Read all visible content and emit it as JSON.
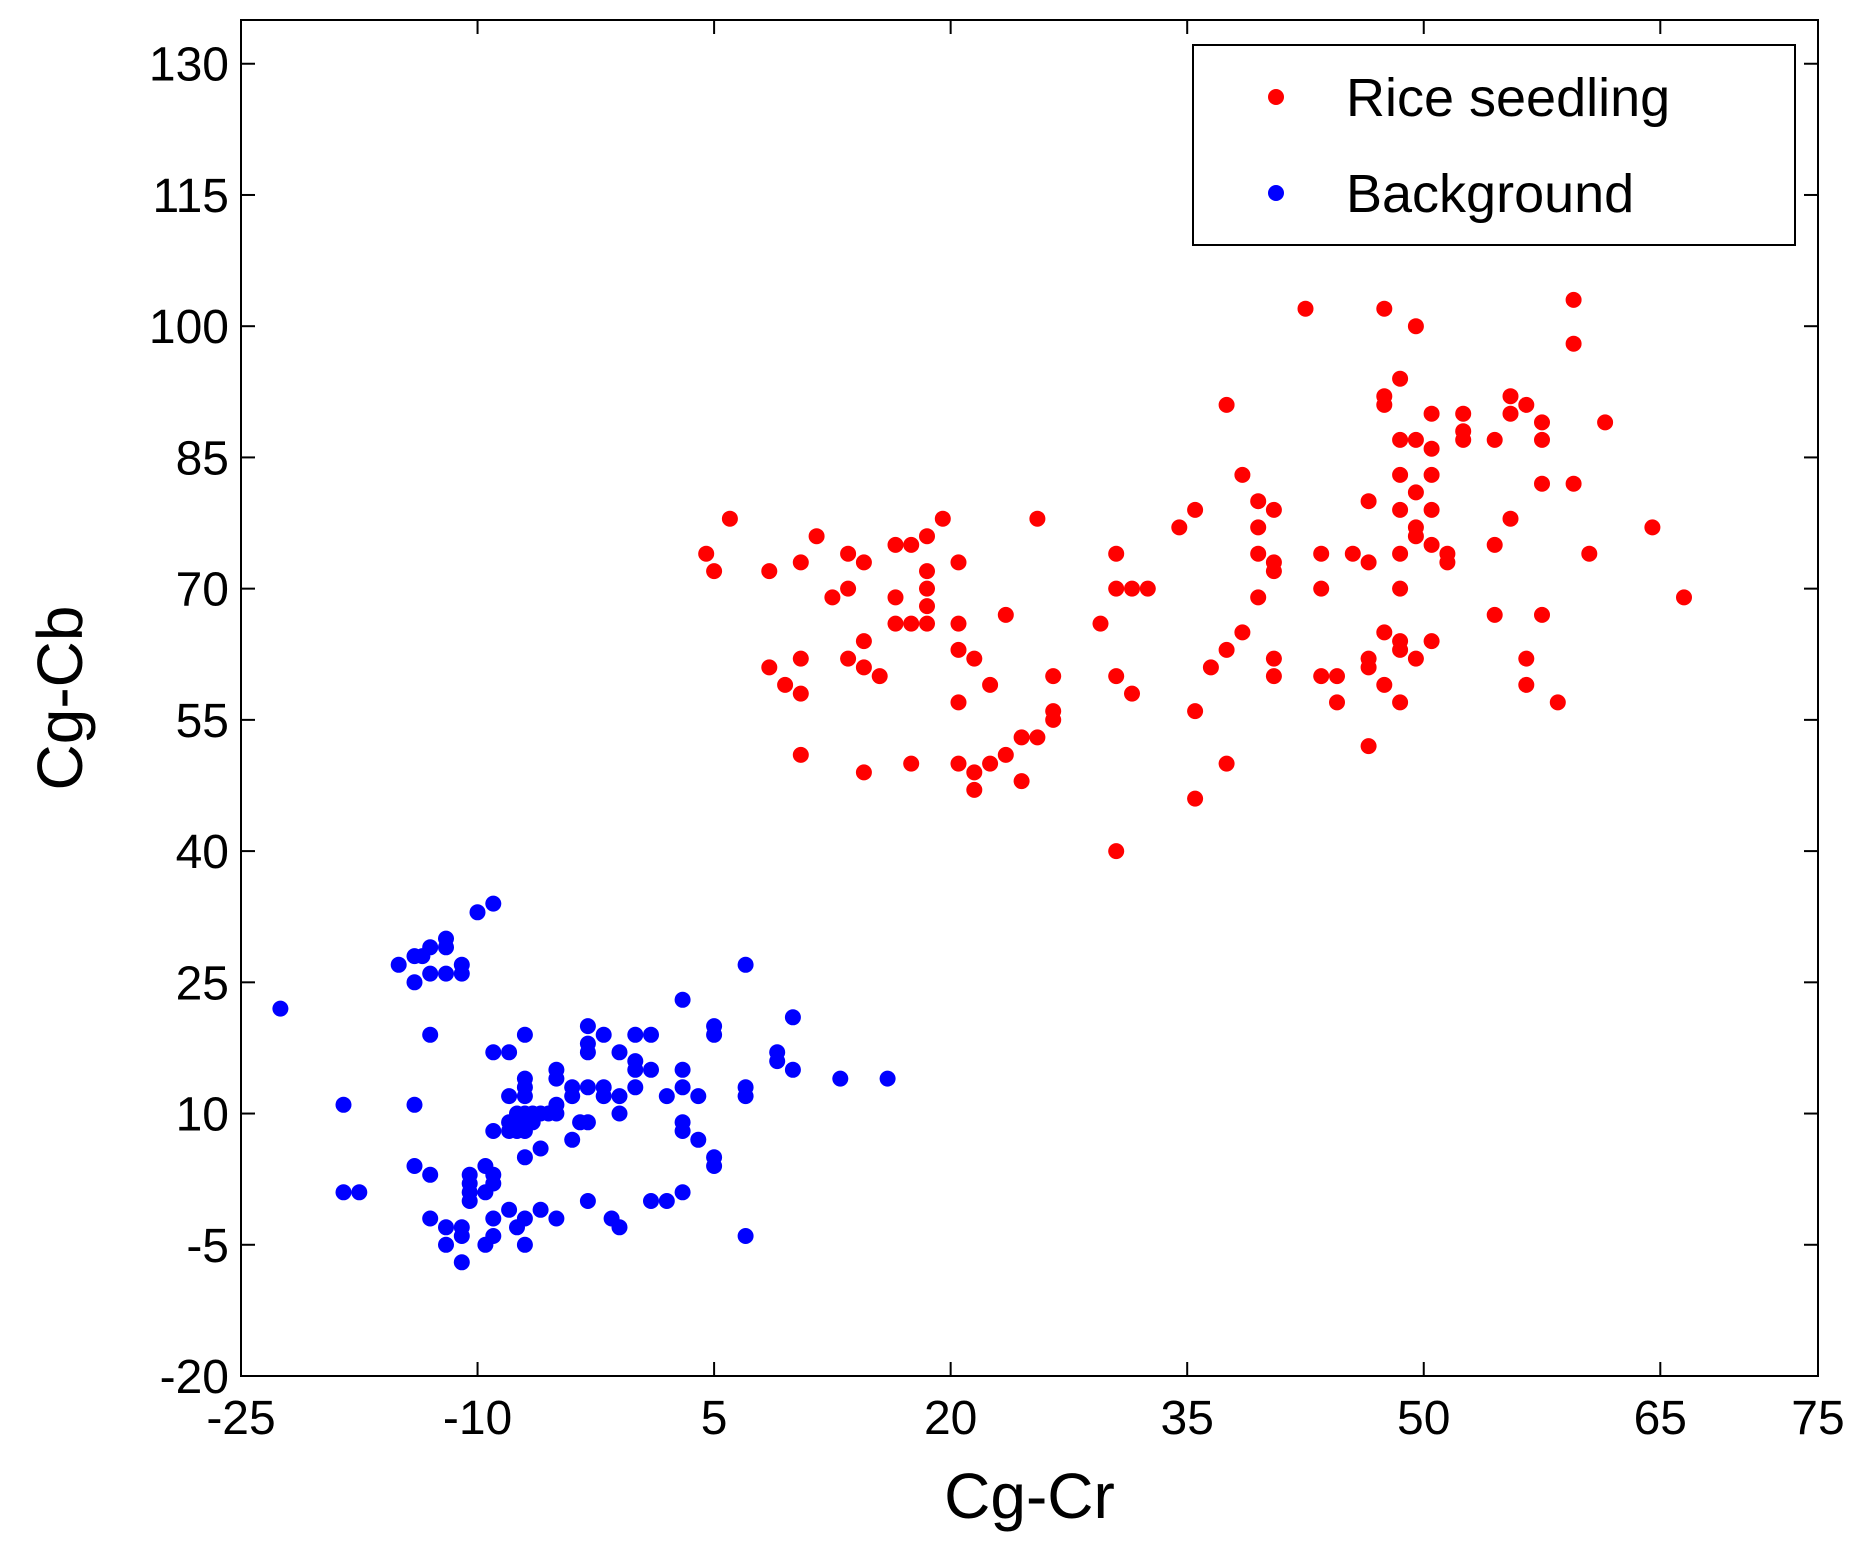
{
  "chart_data": {
    "type": "scatter",
    "title": "",
    "xlabel": "Cg-Cr",
    "ylabel": "Cg-Cb",
    "xlim": [
      -25,
      75
    ],
    "ylim": [
      -20,
      135
    ],
    "xticks": [
      -25,
      -10,
      5,
      20,
      35,
      50,
      65,
      75
    ],
    "yticks": [
      -20,
      -5,
      10,
      25,
      40,
      55,
      70,
      85,
      100,
      115,
      130
    ],
    "xtick_labels": [
      "-25",
      "-10",
      "5",
      "20",
      "35",
      "50",
      "65",
      "75"
    ],
    "ytick_labels": [
      "-20",
      "-5",
      "10",
      "25",
      "40",
      "55",
      "70",
      "85",
      "100",
      "115",
      "130"
    ],
    "grid": false,
    "legend_position": "top-right",
    "series": [
      {
        "name": "Rice seedling",
        "color": "#ff0000",
        "points": [
          [
            4.5,
            74
          ],
          [
            5,
            72
          ],
          [
            6,
            78
          ],
          [
            8.5,
            72
          ],
          [
            8.5,
            61
          ],
          [
            9.5,
            59
          ],
          [
            10.5,
            62
          ],
          [
            10.5,
            58
          ],
          [
            10.5,
            51
          ],
          [
            10.5,
            73
          ],
          [
            11.5,
            76
          ],
          [
            12.5,
            69
          ],
          [
            13.5,
            74
          ],
          [
            13.5,
            70
          ],
          [
            14.5,
            73
          ],
          [
            14.5,
            64
          ],
          [
            14.5,
            61
          ],
          [
            13.5,
            62
          ],
          [
            15.5,
            60
          ],
          [
            14.5,
            49
          ],
          [
            16.5,
            75
          ],
          [
            17.5,
            75
          ],
          [
            16.5,
            69
          ],
          [
            16.5,
            66
          ],
          [
            17.5,
            66
          ],
          [
            18.5,
            76
          ],
          [
            18.5,
            72
          ],
          [
            18.5,
            70
          ],
          [
            18.5,
            68
          ],
          [
            18.5,
            66
          ],
          [
            19.5,
            78
          ],
          [
            17.5,
            50
          ],
          [
            20.5,
            73
          ],
          [
            20.5,
            66
          ],
          [
            20.5,
            63
          ],
          [
            21.5,
            62
          ],
          [
            20.5,
            57
          ],
          [
            20.5,
            50
          ],
          [
            21.5,
            49
          ],
          [
            21.5,
            47
          ],
          [
            22.5,
            59
          ],
          [
            22.5,
            50
          ],
          [
            23.5,
            67
          ],
          [
            23.5,
            51
          ],
          [
            24.5,
            53
          ],
          [
            24.5,
            48
          ],
          [
            25.5,
            53
          ],
          [
            25.5,
            78
          ],
          [
            26.5,
            60
          ],
          [
            26.5,
            56
          ],
          [
            26.5,
            55
          ],
          [
            29.5,
            66
          ],
          [
            30.5,
            74
          ],
          [
            30.5,
            70
          ],
          [
            30.5,
            60
          ],
          [
            30.5,
            40
          ],
          [
            31.5,
            70
          ],
          [
            31.5,
            58
          ],
          [
            32.5,
            70
          ],
          [
            34.5,
            77
          ],
          [
            35.5,
            79
          ],
          [
            35.5,
            56
          ],
          [
            35.5,
            46
          ],
          [
            36.5,
            61
          ],
          [
            37.5,
            91
          ],
          [
            37.5,
            63
          ],
          [
            37.5,
            50
          ],
          [
            38.5,
            83
          ],
          [
            38.5,
            65
          ],
          [
            39.5,
            80
          ],
          [
            39.5,
            77
          ],
          [
            39.5,
            74
          ],
          [
            39.5,
            69
          ],
          [
            40.5,
            79
          ],
          [
            40.5,
            73
          ],
          [
            40.5,
            72
          ],
          [
            40.5,
            62
          ],
          [
            40.5,
            60
          ],
          [
            42.5,
            102
          ],
          [
            43.5,
            74
          ],
          [
            43.5,
            70
          ],
          [
            43.5,
            60
          ],
          [
            44.5,
            60
          ],
          [
            44.5,
            57
          ],
          [
            45.5,
            74
          ],
          [
            46.5,
            80
          ],
          [
            46.5,
            73
          ],
          [
            46.5,
            62
          ],
          [
            46.5,
            61
          ],
          [
            46.5,
            52
          ],
          [
            47.5,
            102
          ],
          [
            47.5,
            92
          ],
          [
            47.5,
            91
          ],
          [
            47.5,
            65
          ],
          [
            47.5,
            59
          ],
          [
            48.5,
            94
          ],
          [
            48.5,
            87
          ],
          [
            48.5,
            83
          ],
          [
            48.5,
            79
          ],
          [
            48.5,
            74
          ],
          [
            48.5,
            70
          ],
          [
            48.5,
            64
          ],
          [
            48.5,
            63
          ],
          [
            48.5,
            57
          ],
          [
            49.5,
            100
          ],
          [
            49.5,
            87
          ],
          [
            49.5,
            81
          ],
          [
            49.5,
            77
          ],
          [
            49.5,
            76
          ],
          [
            49.5,
            62
          ],
          [
            50.5,
            90
          ],
          [
            50.5,
            86
          ],
          [
            50.5,
            83
          ],
          [
            50.5,
            79
          ],
          [
            50.5,
            75
          ],
          [
            50.5,
            64
          ],
          [
            51.5,
            74
          ],
          [
            51.5,
            73
          ],
          [
            52.5,
            90
          ],
          [
            52.5,
            88
          ],
          [
            52.5,
            87
          ],
          [
            54.5,
            87
          ],
          [
            54.5,
            75
          ],
          [
            54.5,
            67
          ],
          [
            55.5,
            92
          ],
          [
            55.5,
            90
          ],
          [
            55.5,
            78
          ],
          [
            56.5,
            91
          ],
          [
            56.5,
            62
          ],
          [
            56.5,
            59
          ],
          [
            57.5,
            89
          ],
          [
            57.5,
            87
          ],
          [
            57.5,
            82
          ],
          [
            57.5,
            67
          ],
          [
            58.5,
            57
          ],
          [
            59.5,
            103
          ],
          [
            59.5,
            98
          ],
          [
            59.5,
            82
          ],
          [
            60.5,
            74
          ],
          [
            61.5,
            89
          ],
          [
            64.5,
            77
          ],
          [
            66.5,
            69
          ]
        ]
      },
      {
        "name": "Background",
        "color": "#0000ff",
        "points": [
          [
            -22.5,
            22
          ],
          [
            -18.5,
            11
          ],
          [
            -18.5,
            1
          ],
          [
            -17.5,
            1
          ],
          [
            -15,
            27
          ],
          [
            -14,
            28
          ],
          [
            -14,
            25
          ],
          [
            -14,
            11
          ],
          [
            -14,
            4
          ],
          [
            -13.5,
            28
          ],
          [
            -13,
            29
          ],
          [
            -13,
            26
          ],
          [
            -13,
            19
          ],
          [
            -13,
            3
          ],
          [
            -13,
            -2
          ],
          [
            -12,
            30
          ],
          [
            -12,
            29
          ],
          [
            -12,
            26
          ],
          [
            -12,
            -3
          ],
          [
            -12,
            -5
          ],
          [
            -11,
            27
          ],
          [
            -11,
            26
          ],
          [
            -11,
            -3
          ],
          [
            -11,
            -4
          ],
          [
            -11,
            -7
          ],
          [
            -10.5,
            3
          ],
          [
            -10.5,
            2
          ],
          [
            -10.5,
            1
          ],
          [
            -10.5,
            0
          ],
          [
            -10,
            33
          ],
          [
            -9.5,
            4
          ],
          [
            -9.5,
            1
          ],
          [
            -9.5,
            -5
          ],
          [
            -9,
            34
          ],
          [
            -9,
            17
          ],
          [
            -9,
            8
          ],
          [
            -9,
            3
          ],
          [
            -9,
            2
          ],
          [
            -9,
            -2
          ],
          [
            -9,
            -4
          ],
          [
            -8,
            17
          ],
          [
            -8,
            12
          ],
          [
            -8,
            9
          ],
          [
            -8,
            8
          ],
          [
            -8,
            -1
          ],
          [
            -7.5,
            10
          ],
          [
            -7.5,
            9
          ],
          [
            -7.5,
            8
          ],
          [
            -7.5,
            -3
          ],
          [
            -7,
            19
          ],
          [
            -7,
            14
          ],
          [
            -7,
            13
          ],
          [
            -7,
            12
          ],
          [
            -7,
            10
          ],
          [
            -7,
            9
          ],
          [
            -7,
            8
          ],
          [
            -7,
            5
          ],
          [
            -7,
            -2
          ],
          [
            -7,
            -5
          ],
          [
            -6.5,
            10
          ],
          [
            -6.5,
            9
          ],
          [
            -6,
            10
          ],
          [
            -6,
            6
          ],
          [
            -6,
            -1
          ],
          [
            -5.5,
            10
          ],
          [
            -5,
            15
          ],
          [
            -5,
            14
          ],
          [
            -5,
            11
          ],
          [
            -5,
            10
          ],
          [
            -5,
            -2
          ],
          [
            -4,
            13
          ],
          [
            -4,
            12
          ],
          [
            -4,
            7
          ],
          [
            -3.5,
            9
          ],
          [
            -3,
            20
          ],
          [
            -3,
            18
          ],
          [
            -3,
            17
          ],
          [
            -3,
            13
          ],
          [
            -3,
            9
          ],
          [
            -3,
            0
          ],
          [
            -2,
            19
          ],
          [
            -2,
            13
          ],
          [
            -2,
            12
          ],
          [
            -1.5,
            -2
          ],
          [
            -1,
            17
          ],
          [
            -1,
            12
          ],
          [
            -1,
            10
          ],
          [
            -1,
            -3
          ],
          [
            0,
            19
          ],
          [
            0,
            16
          ],
          [
            0,
            15
          ],
          [
            0,
            13
          ],
          [
            1,
            19
          ],
          [
            1,
            15
          ],
          [
            1,
            0
          ],
          [
            2,
            12
          ],
          [
            2,
            0
          ],
          [
            3,
            23
          ],
          [
            3,
            15
          ],
          [
            3,
            13
          ],
          [
            3,
            9
          ],
          [
            3,
            8
          ],
          [
            3,
            1
          ],
          [
            4,
            12
          ],
          [
            4,
            7
          ],
          [
            5,
            20
          ],
          [
            5,
            19
          ],
          [
            5,
            5
          ],
          [
            5,
            4
          ],
          [
            7,
            27
          ],
          [
            7,
            13
          ],
          [
            7,
            12
          ],
          [
            7,
            -4
          ],
          [
            9,
            17
          ],
          [
            9,
            16
          ],
          [
            10,
            21
          ],
          [
            10,
            15
          ],
          [
            13,
            14
          ],
          [
            16,
            14
          ]
        ]
      }
    ]
  }
}
